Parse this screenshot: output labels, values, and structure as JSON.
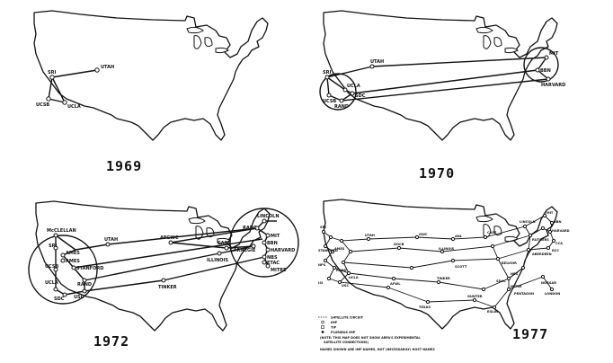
{
  "panels": [
    {
      "year": "1969",
      "nodes": [
        "UTAH",
        "SRI",
        "UCSB",
        "UCLA"
      ]
    },
    {
      "year": "1970",
      "nodes": [
        "UTAH",
        "SRI",
        "UCSB",
        "UCLA",
        "SDC",
        "RAND",
        "MIT",
        "BBN",
        "HARVARD"
      ]
    },
    {
      "year": "1972",
      "nodes": [
        "McCLELLAN",
        "SRI",
        "AMES",
        "AMES",
        "UCSB",
        "STANFORD",
        "UCLA",
        "RAND",
        "SDC",
        "USC",
        "UTAH",
        "AFGWC",
        "ILLINOIS",
        "CASE",
        "CARNEGIE",
        "TINKER",
        "LINCOLN",
        "RADC",
        "MIT",
        "BBN",
        "HARVARD",
        "NBS",
        "ETAC",
        "MITRE"
      ]
    },
    {
      "year": "1977",
      "nodes": [
        "SRI",
        "ILLINOIS",
        "CASE",
        "LINCOLN",
        "MIT",
        "BBN",
        "HARVARD",
        "NBS",
        "MITRE",
        "TINKER",
        "TEXAS",
        "GUNTER",
        "EGLIN",
        "SCOTT",
        "ANL",
        "GWC",
        "UTAH",
        "DOCB",
        "AFWL",
        "USC",
        "UCLA",
        "RAND",
        "ISI",
        "AMES",
        "STANFORD",
        "NPS",
        "BELVOIR",
        "ABERDEEN",
        "RUTGERS",
        "PENTAGON",
        "SDAC",
        "NORSAR",
        "LONDON",
        "CCA",
        "RCC"
      ],
      "legend": [
        "SATELLITE CIRCUIT",
        "IMP",
        "TIP",
        "PLURIBUS IMP",
        "(NOTE: THIS MAP DOES NOT SHOW ARPA'S EXPERIMENTAL",
        "SATELLITE CONNECTIONS)",
        "NAMES SHOWN ARE IMP NAMES, NOT (NECESSARILY) HOST NAMES"
      ]
    }
  ]
}
